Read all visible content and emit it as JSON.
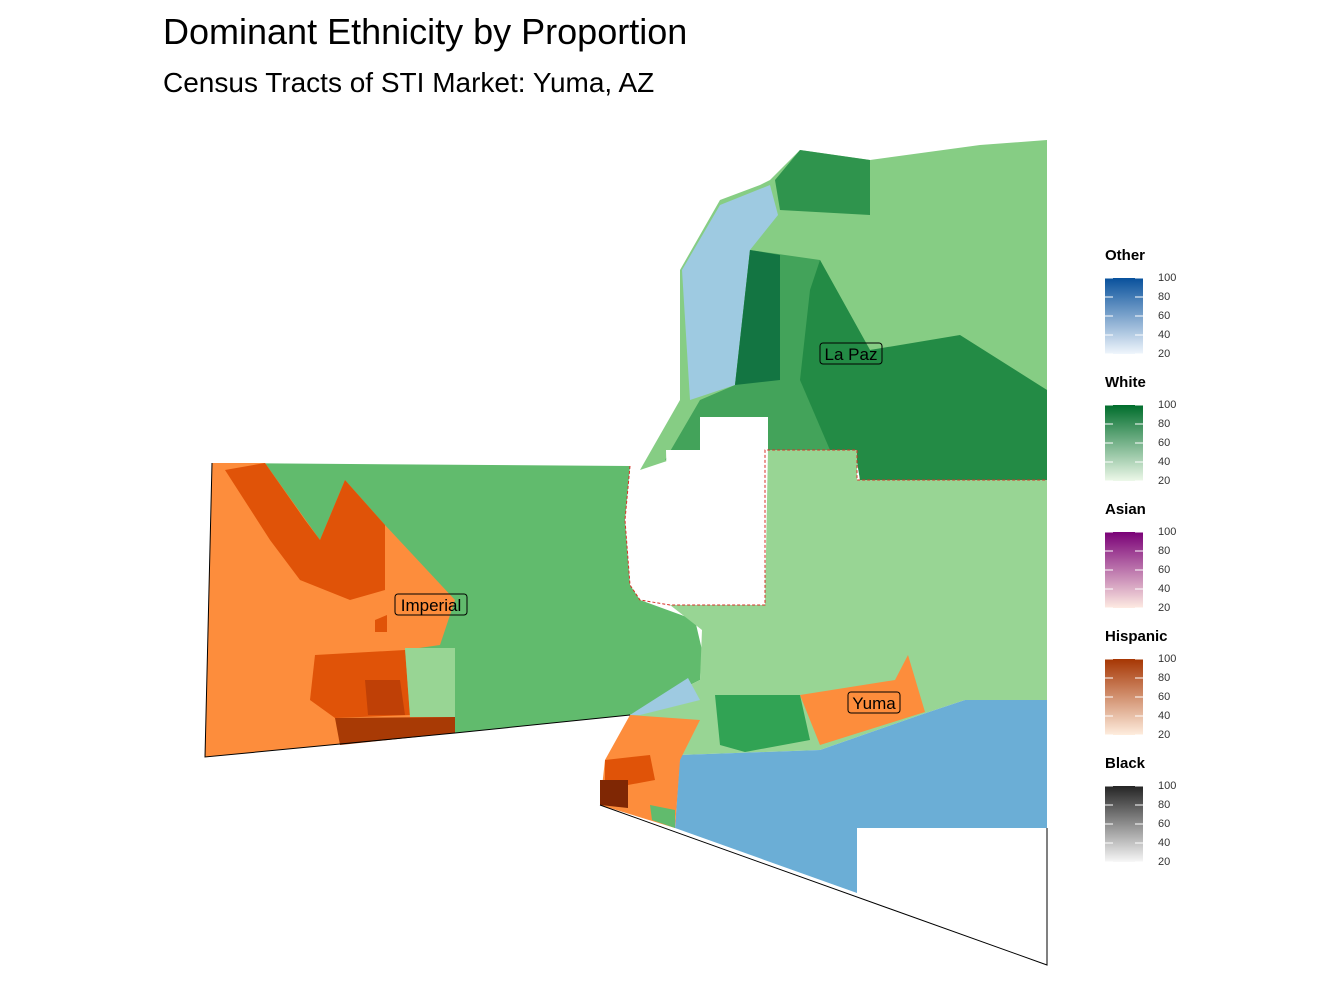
{
  "title": "Dominant Ethnicity by Proportion",
  "subtitle": "Census Tracts of STI Market: Yuma, AZ",
  "regions": [
    "La Paz",
    "Imperial",
    "Yuma"
  ],
  "legends": [
    {
      "title": "Other",
      "colors": [
        "#f0f6fc",
        "#08519c"
      ],
      "lim": [
        20,
        100
      ],
      "ticks": [
        100,
        80,
        60,
        40,
        20
      ]
    },
    {
      "title": "White",
      "colors": [
        "#edf8e9",
        "#006d2c"
      ],
      "lim": [
        20,
        100
      ],
      "ticks": [
        100,
        80,
        60,
        40,
        20
      ]
    },
    {
      "title": "Asian",
      "colors": [
        "#feebe2",
        "#7a0177"
      ],
      "lim": [
        20,
        100
      ],
      "ticks": [
        100,
        80,
        60,
        40,
        20
      ]
    },
    {
      "title": "Hispanic",
      "colors": [
        "#feedde",
        "#a63603"
      ],
      "lim": [
        20,
        100
      ],
      "ticks": [
        100,
        80,
        60,
        40,
        20
      ]
    },
    {
      "title": "Black",
      "colors": [
        "#f7f7f7",
        "#252525"
      ],
      "lim": [
        20,
        100
      ],
      "ticks": [
        100,
        80,
        60,
        40,
        20
      ]
    }
  ]
}
